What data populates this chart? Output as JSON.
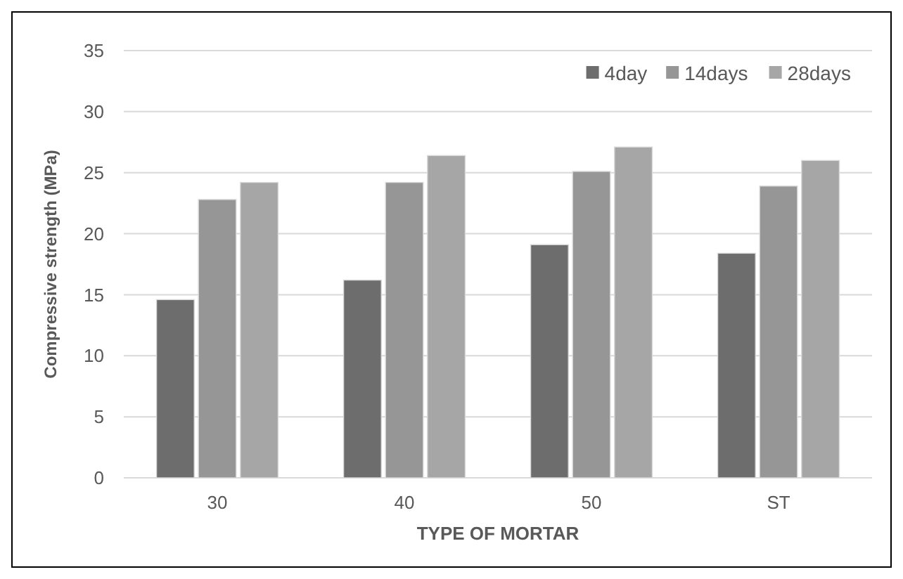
{
  "chart_data": {
    "type": "bar",
    "xlabel": "TYPE OF MORTAR",
    "ylabel": "Compressive strength (MPa)",
    "categories": [
      "30",
      "40",
      "50",
      "ST"
    ],
    "series": [
      {
        "name": "4day",
        "color": "#6d6d6d",
        "values": [
          14.6,
          16.2,
          19.1,
          18.4
        ]
      },
      {
        "name": "14days",
        "color": "#969696",
        "values": [
          22.8,
          24.2,
          25.1,
          23.9
        ]
      },
      {
        "name": "28days",
        "color": "#a6a6a6",
        "values": [
          24.2,
          26.4,
          27.1,
          26.0
        ]
      }
    ],
    "ylim": [
      0,
      35
    ],
    "yticks": [
      0,
      5,
      10,
      15,
      20,
      25,
      30,
      35
    ],
    "grid": "y",
    "legend": "top right"
  }
}
